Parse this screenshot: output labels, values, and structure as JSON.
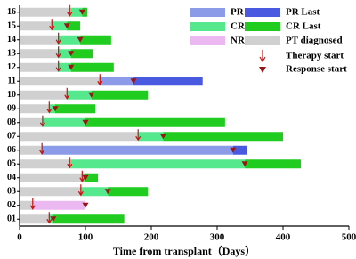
{
  "chart_data": {
    "type": "swimmer",
    "x_label": "Time from transplant（Days）",
    "categories": [
      "01",
      "02",
      "03",
      "04",
      "05",
      "06",
      "07",
      "08",
      "09",
      "10",
      "11",
      "12",
      "13",
      "14",
      "15",
      "16"
    ],
    "xlim": [
      0,
      500
    ],
    "xticks": [
      0,
      100,
      200,
      300,
      400,
      500
    ],
    "series": [
      {
        "name": "PT diagnosed",
        "color": "#d0d0d0",
        "values": [
          45,
          20,
          93,
          95,
          76,
          34,
          180,
          35,
          45,
          72,
          122,
          59,
          59,
          59,
          49,
          76
        ]
      },
      {
        "name": "PR",
        "color": "#8c9be8",
        "values": [
          null,
          null,
          null,
          null,
          null,
          290,
          null,
          null,
          null,
          null,
          51,
          null,
          null,
          null,
          null,
          null
        ]
      },
      {
        "name": "CR",
        "color": "#55e88c",
        "values": [
          6,
          null,
          41,
          5,
          266,
          null,
          38,
          65,
          9,
          37,
          null,
          19,
          19,
          33,
          23,
          19
        ]
      },
      {
        "name": "NR",
        "color": "#ebb8f2",
        "values": [
          null,
          80,
          null,
          null,
          null,
          null,
          null,
          null,
          null,
          null,
          null,
          null,
          null,
          null,
          null,
          null
        ]
      },
      {
        "name": "PR Last",
        "color": "#4a5ae0",
        "values": [
          null,
          null,
          null,
          null,
          null,
          22,
          null,
          null,
          null,
          null,
          105,
          null,
          null,
          null,
          null,
          null
        ]
      },
      {
        "name": "CR Last",
        "color": "#1fcc1f",
        "values": [
          108,
          null,
          61,
          19,
          85,
          null,
          182,
          212,
          61,
          86,
          null,
          65,
          33,
          47,
          20,
          8
        ]
      }
    ],
    "markers": [
      {
        "name": "Therapy start",
        "color": "#cc1111",
        "values": [
          45,
          20,
          93,
          95,
          76,
          34,
          180,
          35,
          45,
          72,
          122,
          59,
          59,
          59,
          49,
          76
        ]
      },
      {
        "name": "Response start",
        "color": "#9a1515",
        "values": [
          51,
          100,
          134,
          100,
          342,
          324,
          218,
          100,
          54,
          109,
          173,
          78,
          78,
          92,
          72,
          95
        ]
      }
    ]
  }
}
